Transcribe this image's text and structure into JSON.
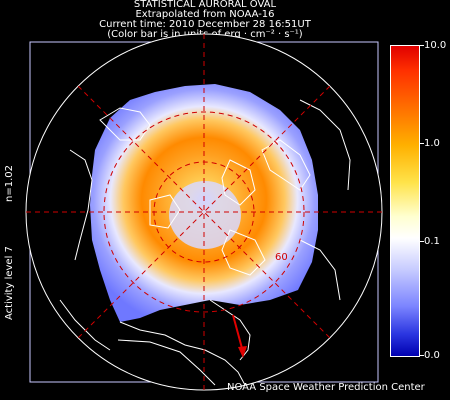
{
  "header": {
    "line1": "STATISTICAL AURORAL OVAL",
    "line2": "Extrapolated from NOAA-16",
    "line3": "Current time: 2010 December 28 16:51UT",
    "line4": "(Color bar is in units of erg · cm⁻² · s⁻¹)"
  },
  "side": {
    "n_label": "n=1.02",
    "activity_label": "Activity level 7"
  },
  "map": {
    "latitude_label": "60"
  },
  "colorbar": {
    "ticks": [
      "10.0",
      "1.0",
      "0.1",
      "0.0"
    ]
  },
  "footer": {
    "credit": "NOAA Space Weather Prediction Center"
  }
}
